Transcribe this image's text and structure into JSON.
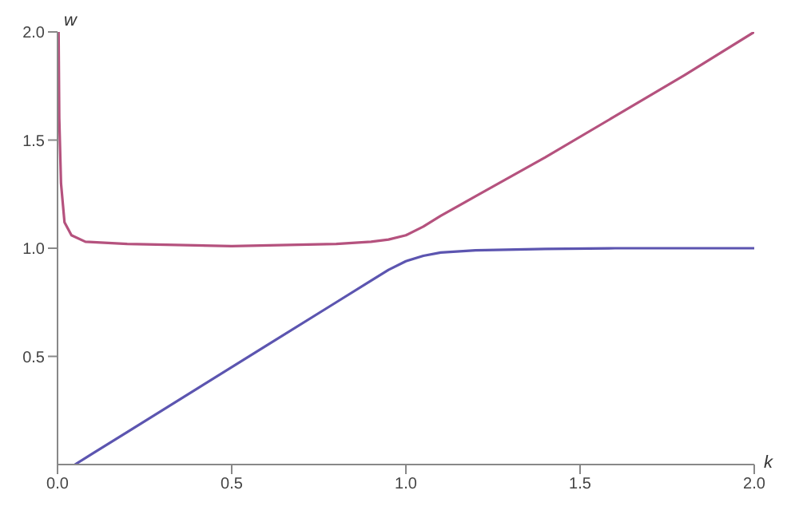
{
  "chart_data": {
    "type": "line",
    "xlabel": "k",
    "ylabel": "w",
    "xlim": [
      0,
      2
    ],
    "ylim": [
      0,
      2
    ],
    "xticks": [
      {
        "value": 0,
        "label": "0.0"
      },
      {
        "value": 0.5,
        "label": "0.5"
      },
      {
        "value": 1,
        "label": "1.0"
      },
      {
        "value": 1.5,
        "label": "1.5"
      },
      {
        "value": 2,
        "label": "2.0"
      }
    ],
    "yticks": [
      {
        "value": 0.5,
        "label": "0.5"
      },
      {
        "value": 1,
        "label": "1.0"
      },
      {
        "value": 1.5,
        "label": "1.5"
      },
      {
        "value": 2,
        "label": "2.0"
      }
    ],
    "grid": false,
    "legend": false,
    "marker": "none",
    "line_style": "solid",
    "series": [
      {
        "color": "#b5527e",
        "x": [
          0.003,
          0.005,
          0.01,
          0.02,
          0.04,
          0.08,
          0.2,
          0.5,
          0.8,
          0.9,
          0.95,
          1.0,
          1.05,
          1.1,
          1.2,
          1.4,
          1.6,
          1.8,
          2.0
        ],
        "values": [
          2.0,
          1.6,
          1.3,
          1.12,
          1.06,
          1.03,
          1.02,
          1.01,
          1.02,
          1.03,
          1.04,
          1.06,
          1.1,
          1.15,
          1.24,
          1.42,
          1.61,
          1.8,
          2.0
        ]
      },
      {
        "color": "#5c55b0",
        "x": [
          0.05,
          0.1,
          0.2,
          0.4,
          0.6,
          0.8,
          0.9,
          0.95,
          1.0,
          1.05,
          1.1,
          1.2,
          1.4,
          1.6,
          2.0
        ],
        "values": [
          0,
          0.05,
          0.15,
          0.35,
          0.55,
          0.75,
          0.85,
          0.9,
          0.94,
          0.965,
          0.98,
          0.99,
          0.997,
          1.0,
          1.0
        ]
      }
    ]
  }
}
